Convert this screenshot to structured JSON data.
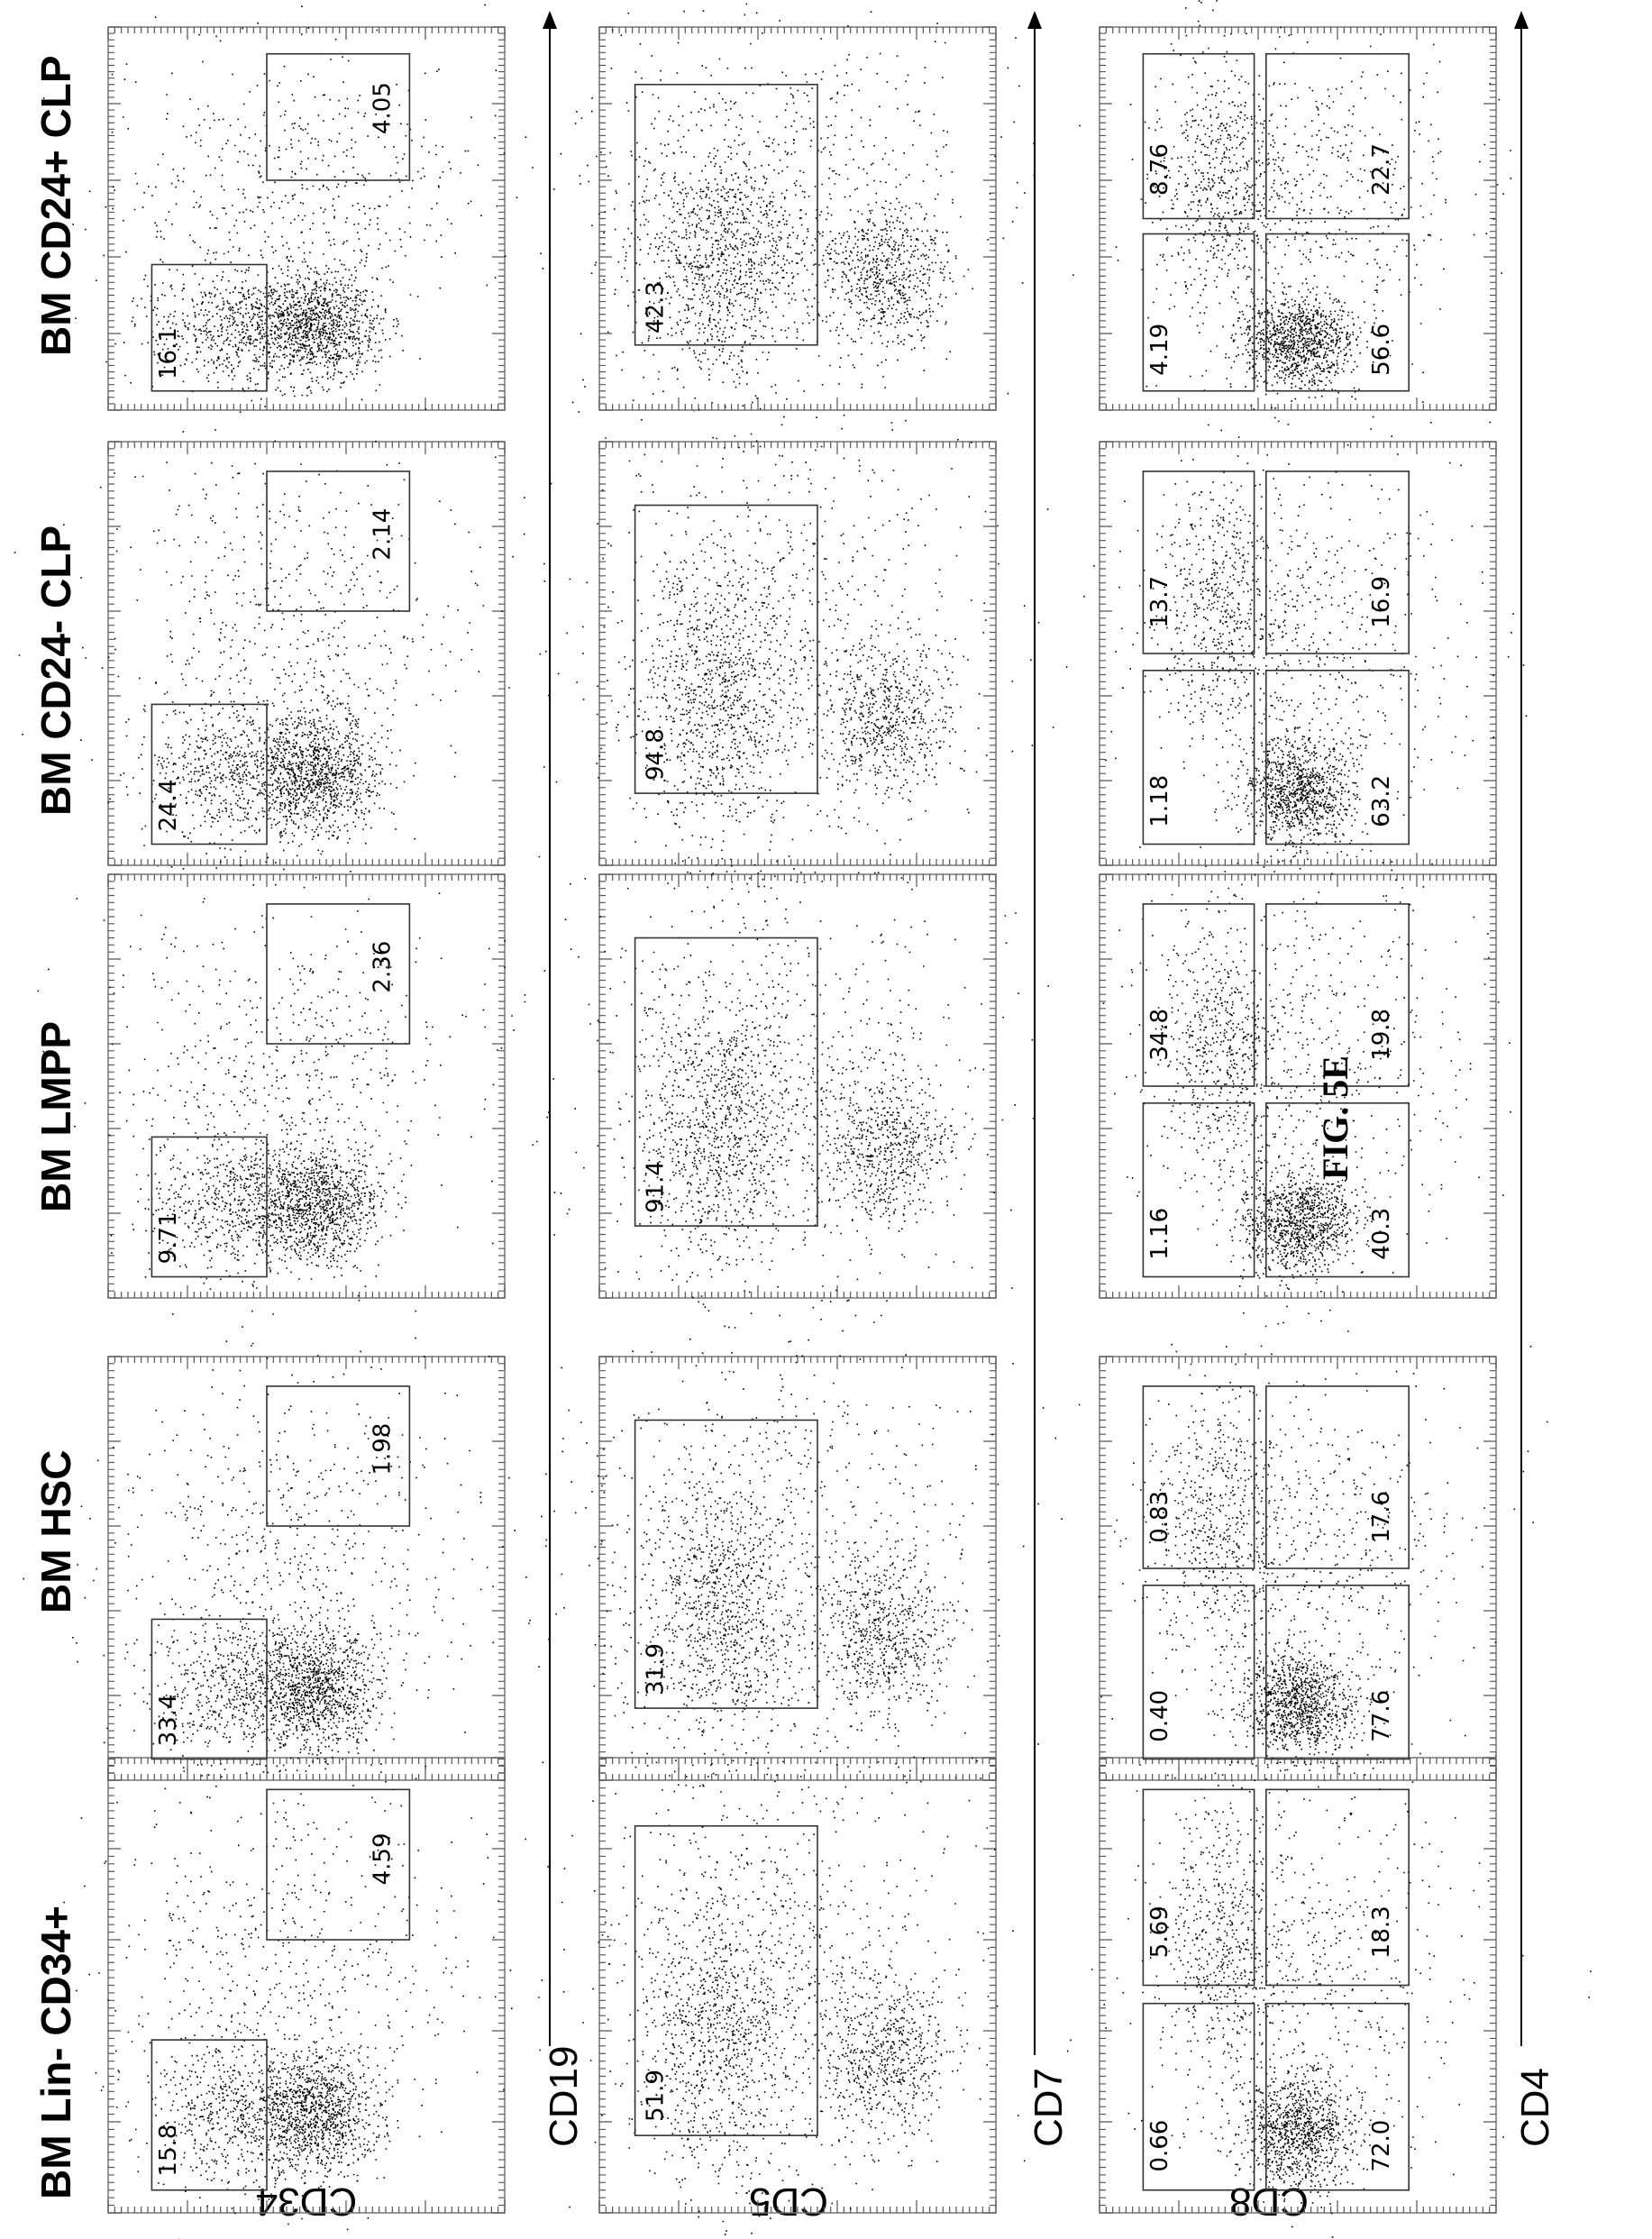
{
  "columns": [
    {
      "title": "BM Lin- CD34+"
    },
    {
      "title": "BM HSC"
    },
    {
      "title": "BM LMPP"
    },
    {
      "title": "BM CD24- CLP"
    },
    {
      "title": "BM CD24+ CLP"
    }
  ],
  "rows": [
    {
      "y_axis": "CD34",
      "x_axis": "CD19"
    },
    {
      "y_axis": "CD5",
      "x_axis": "CD7"
    },
    {
      "y_axis": "CD8",
      "x_axis": "CD4"
    }
  ],
  "caption": "FIG. 5E",
  "gates": {
    "row1": [
      {
        "a": "15.8",
        "b": "4.59"
      },
      {
        "a": "33.4",
        "b": "1.98"
      },
      {
        "a": "9.71",
        "b": "2.36"
      },
      {
        "a": "24.4",
        "b": "2.14"
      },
      {
        "a": "16.1",
        "b": "4.05"
      }
    ],
    "row2": [
      "51.9",
      "31.9",
      "91.4",
      "94.8",
      "42.3"
    ],
    "row3": [
      {
        "q1": "0.66",
        "q2": "5.69",
        "q3": "72.0",
        "q4": "18.3"
      },
      {
        "q1": "0.40",
        "q2": "0.83",
        "q3": "77.6",
        "q4": "17.6"
      },
      {
        "q1": "1.16",
        "q2": "34.8",
        "q3": "40.3",
        "q4": "19.8"
      },
      {
        "q1": "1.18",
        "q2": "13.7",
        "q3": "63.2",
        "q4": "16.9"
      },
      {
        "q1": "4.19",
        "q2": "8.76",
        "q3": "56.6",
        "q4": "22.7"
      }
    ]
  }
}
